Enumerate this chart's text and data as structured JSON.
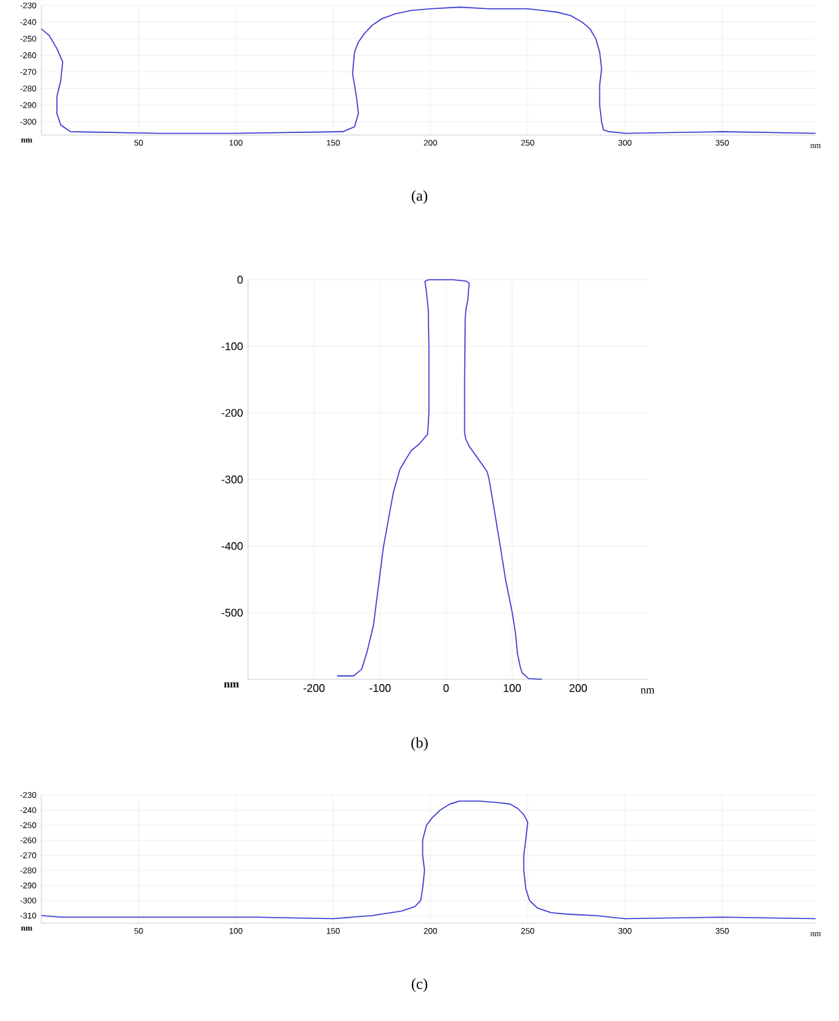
{
  "chart_data": [
    {
      "type": "line",
      "xlabel": "nm",
      "ylabel": "nm",
      "annotations": [
        "(a)"
      ],
      "grid": true,
      "xlim": [
        0,
        398
      ],
      "ylim": [
        -308,
        -230
      ],
      "xticks": [
        50,
        100,
        150,
        200,
        250,
        300,
        350
      ],
      "yticks": [
        -300,
        -290,
        -280,
        -270,
        -260,
        -250,
        -240,
        -230
      ],
      "series": [
        {
          "color": "#3a3ad0",
          "x": [
            0,
            4,
            8,
            11,
            10,
            8,
            8,
            10,
            15,
            60,
            100,
            155,
            161,
            163,
            162,
            160,
            161,
            163,
            166,
            170,
            175,
            182,
            190,
            200,
            215,
            230,
            250,
            258,
            265,
            272,
            278,
            282,
            285,
            287,
            288,
            287,
            287,
            288,
            289,
            292,
            300,
            350,
            398
          ],
          "values": [
            -244,
            -248,
            -256,
            -264,
            -275,
            -285,
            -295,
            -302,
            -306,
            -307,
            -307,
            -306,
            -303,
            -295,
            -285,
            -271,
            -258,
            -252,
            -247,
            -242,
            -238,
            -235,
            -233,
            -232,
            -231,
            -232,
            -232,
            -233,
            -234,
            -236,
            -240,
            -244,
            -250,
            -258,
            -268,
            -278,
            -290,
            -300,
            -305,
            -306,
            -307,
            -306,
            -307
          ]
        }
      ]
    },
    {
      "type": "line",
      "xlabel": "nm",
      "ylabel": "nm",
      "annotations": [
        "(b)"
      ],
      "grid": true,
      "xlim": [
        -300,
        305
      ],
      "ylim": [
        -600,
        0
      ],
      "xticks": [
        -200,
        -100,
        0,
        100,
        200
      ],
      "yticks": [
        -500,
        -400,
        -300,
        -200,
        -100,
        0
      ],
      "series": [
        {
          "color": "#3a3ad0",
          "x": [
            -165,
            -140,
            -128,
            -120,
            -110,
            -95,
            -80,
            -70,
            -60,
            -53,
            -40,
            -28,
            -26,
            -26,
            -27,
            -30,
            -32,
            -30,
            -25,
            -10,
            0,
            10,
            20,
            30,
            35,
            34,
            33,
            30,
            29,
            28,
            28,
            30,
            35,
            45,
            55,
            62,
            65,
            72,
            82,
            90,
            100,
            105,
            108,
            112,
            115,
            125,
            145
          ],
          "values": [
            -595,
            -595,
            -585,
            -560,
            -519,
            -402,
            -320,
            -285,
            -268,
            -257,
            -246,
            -232,
            -200,
            -100,
            -45,
            -16,
            -3,
            -1,
            0,
            0,
            0,
            0,
            -1,
            -2,
            -5,
            -15,
            -30,
            -45,
            -57,
            -150,
            -230,
            -240,
            -250,
            -264,
            -278,
            -288,
            -299,
            -340,
            -400,
            -450,
            -499,
            -530,
            -561,
            -580,
            -590,
            -599,
            -600
          ]
        }
      ]
    },
    {
      "type": "line",
      "xlabel": "nm",
      "ylabel": "nm",
      "annotations": [
        "(c)"
      ],
      "grid": true,
      "xlim": [
        0,
        398
      ],
      "ylim": [
        -315,
        -230
      ],
      "xticks": [
        50,
        100,
        150,
        200,
        250,
        300,
        350
      ],
      "yticks": [
        -310,
        -300,
        -290,
        -280,
        -270,
        -260,
        -250,
        -240,
        -230
      ],
      "series": [
        {
          "color": "#3a3ad0",
          "x": [
            0,
            10,
            60,
            110,
            150,
            170,
            185,
            192,
            195,
            196,
            197,
            196,
            196,
            198,
            201,
            205,
            210,
            215,
            225,
            235,
            241,
            245,
            248,
            250,
            249,
            248,
            248,
            249,
            251,
            255,
            262,
            270,
            285,
            300,
            350,
            398
          ],
          "values": [
            -310,
            -311,
            -311,
            -311,
            -312,
            -310,
            -307,
            -304,
            -300,
            -292,
            -280,
            -270,
            -260,
            -250,
            -245,
            -240,
            -236,
            -234,
            -234,
            -235,
            -236,
            -239,
            -243,
            -248,
            -260,
            -270,
            -280,
            -292,
            -300,
            -305,
            -308,
            -309,
            -310,
            -312,
            -311,
            -312
          ]
        }
      ]
    }
  ]
}
